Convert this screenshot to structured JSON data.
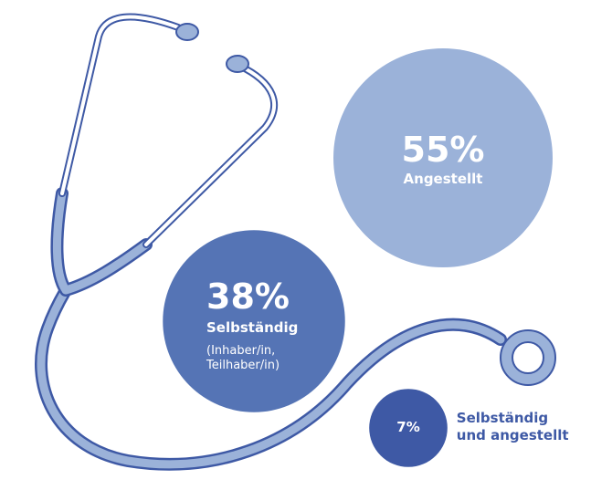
{
  "chart_data": {
    "type": "bubble",
    "categories": [
      "Angestellt",
      "Selbständig",
      "Selbständig und angestellt"
    ],
    "values": [
      55,
      38,
      7
    ],
    "value_labels": [
      "55%",
      "38%",
      "7%"
    ],
    "colors": [
      "#9bb2d9",
      "#5574b5",
      "#3e59a5"
    ],
    "note": "(Inhaber/in, Teilhaber/in)"
  }
}
